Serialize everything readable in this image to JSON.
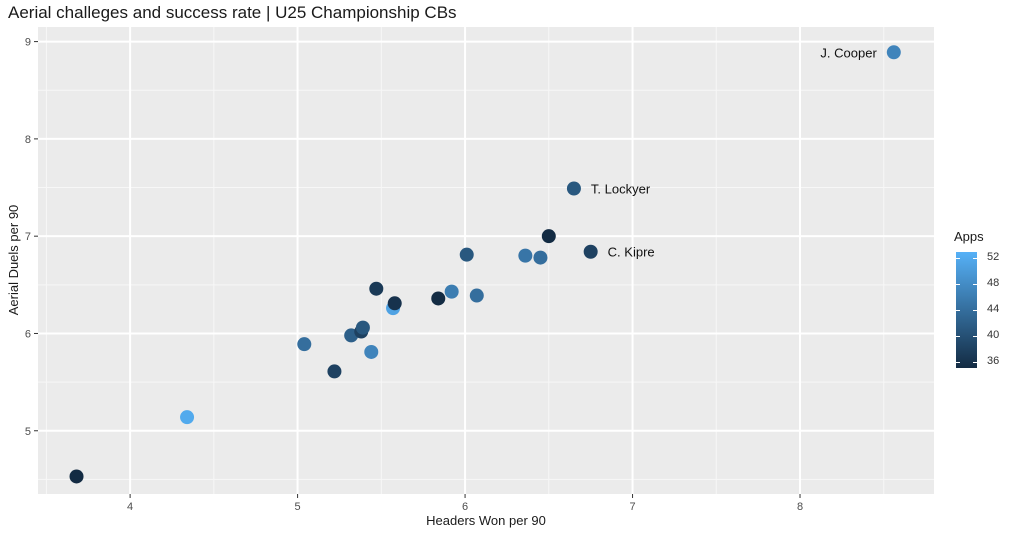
{
  "chart_data": {
    "type": "scatter",
    "title": "Aerial challeges and success rate | U25 Championship CBs",
    "xlabel": "Headers Won per 90",
    "ylabel": "Aerial Duels per 90",
    "xlim": [
      3.45,
      8.8
    ],
    "ylim": [
      4.35,
      9.15
    ],
    "xticks": [
      4,
      5,
      6,
      7,
      8
    ],
    "yticks": [
      5,
      6,
      7,
      8,
      9
    ],
    "grid": true,
    "color_scale": {
      "name": "Apps",
      "min": 35,
      "max": 53,
      "low_color": "#132B43",
      "high_color": "#56B1F7",
      "ticks": [
        36,
        40,
        44,
        48,
        52
      ],
      "legend_position": "right"
    },
    "points": [
      {
        "x": 3.68,
        "y": 4.53,
        "apps": 35,
        "label": ""
      },
      {
        "x": 4.34,
        "y": 5.14,
        "apps": 52,
        "label": ""
      },
      {
        "x": 5.04,
        "y": 5.89,
        "apps": 44,
        "label": ""
      },
      {
        "x": 5.22,
        "y": 5.61,
        "apps": 38,
        "label": ""
      },
      {
        "x": 5.32,
        "y": 5.98,
        "apps": 42,
        "label": ""
      },
      {
        "x": 5.38,
        "y": 6.02,
        "apps": 38,
        "label": ""
      },
      {
        "x": 5.39,
        "y": 6.06,
        "apps": 41,
        "label": ""
      },
      {
        "x": 5.44,
        "y": 5.81,
        "apps": 47,
        "label": ""
      },
      {
        "x": 5.47,
        "y": 6.46,
        "apps": 37,
        "label": ""
      },
      {
        "x": 5.57,
        "y": 6.26,
        "apps": 51,
        "label": ""
      },
      {
        "x": 5.58,
        "y": 6.31,
        "apps": 36,
        "label": ""
      },
      {
        "x": 5.84,
        "y": 6.36,
        "apps": 35,
        "label": ""
      },
      {
        "x": 5.92,
        "y": 6.43,
        "apps": 46,
        "label": ""
      },
      {
        "x": 6.01,
        "y": 6.81,
        "apps": 41,
        "label": ""
      },
      {
        "x": 6.07,
        "y": 6.39,
        "apps": 44,
        "label": ""
      },
      {
        "x": 6.36,
        "y": 6.8,
        "apps": 45,
        "label": ""
      },
      {
        "x": 6.45,
        "y": 6.78,
        "apps": 44,
        "label": ""
      },
      {
        "x": 6.5,
        "y": 7.0,
        "apps": 35,
        "label": ""
      },
      {
        "x": 6.65,
        "y": 7.49,
        "apps": 41,
        "label": "T. Lockyer"
      },
      {
        "x": 6.75,
        "y": 6.84,
        "apps": 38,
        "label": "C. Kipre"
      },
      {
        "x": 8.56,
        "y": 8.89,
        "apps": 47,
        "label": "J. Cooper"
      }
    ]
  }
}
